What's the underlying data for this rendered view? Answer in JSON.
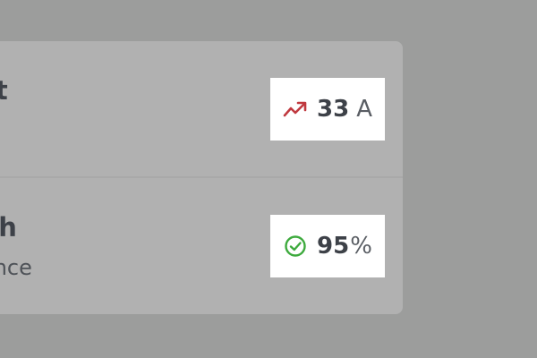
{
  "metrics": [
    {
      "title": "nt",
      "subtitle": "",
      "value": "33",
      "unit": "A",
      "icon": "trending-up-icon",
      "icon_color": "#c0393f"
    },
    {
      "title": "lth",
      "subtitle": "ance",
      "value": "95",
      "unit": "%",
      "icon": "check-circle-icon",
      "icon_color": "#3daa3d"
    }
  ],
  "colors": {
    "backdrop": "#9c9d9c",
    "card": "#b1b1b1",
    "text": "#3d4148"
  }
}
